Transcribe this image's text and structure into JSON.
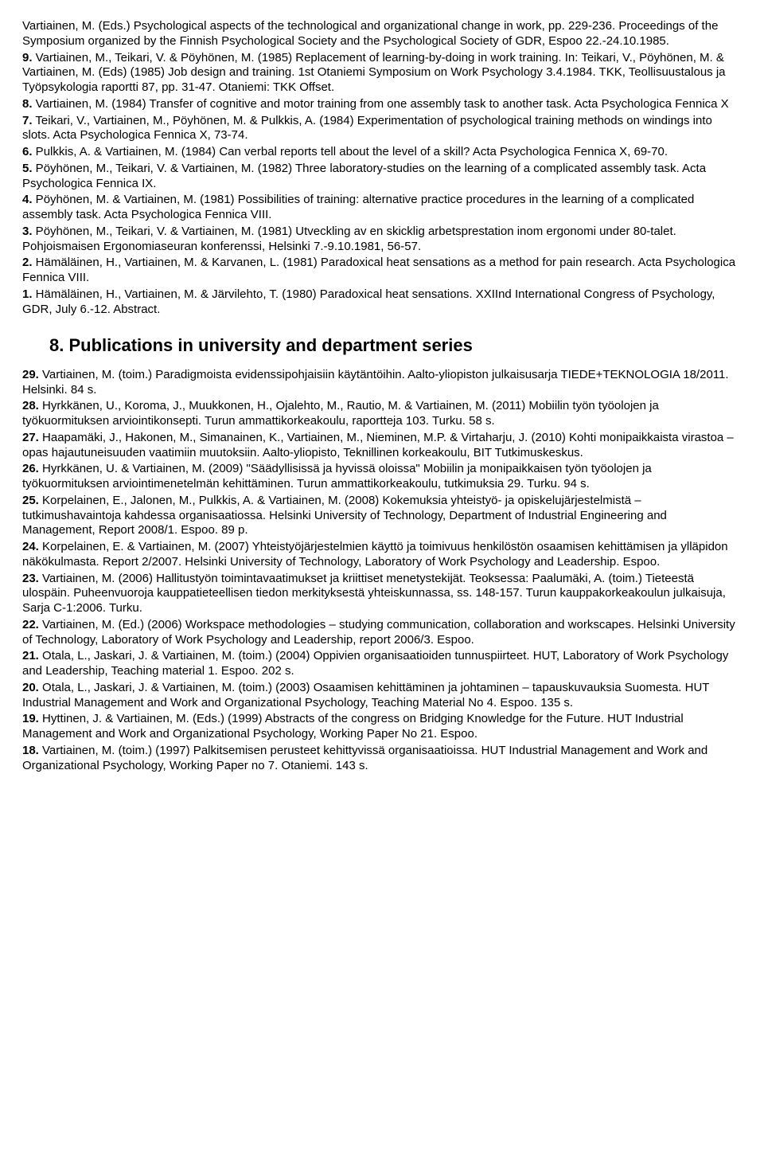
{
  "top_entries": [
    {
      "text": "Vartiainen, M. (Eds.) Psychological aspects of the technological and organizational change in work, pp. 229-236. Proceedings of the Symposium organized by the Finnish Psychological Society and the Psychological Society of GDR, Espoo 22.-24.10.1985."
    },
    {
      "num": "9.",
      "text": " Vartiainen, M., Teikari, V. & Pöyhönen, M. (1985) Replacement of learning-by-doing in work training. In: Teikari, V., Pöyhönen, M. & Vartiainen, M. (Eds) (1985) Job design and training. 1st Otaniemi Symposium on Work Psychology 3.4.1984. TKK, Teollisuustalous ja Työpsykologia raportti 87, pp. 31-47. Otaniemi: TKK Offset."
    },
    {
      "num": "8.",
      "text": " Vartiainen, M. (1984) Transfer of cognitive and motor training from one assembly task to another task. Acta Psychologica Fennica X"
    },
    {
      "num": "7.",
      "text": " Teikari, V., Vartiainen, M., Pöyhönen, M. & Pulkkis, A. (1984) Experimentation of psychological training methods on windings into slots. Acta Psychologica Fennica X, 73-74."
    },
    {
      "num": "6.",
      "text": " Pulkkis, A. & Vartiainen, M. (1984) Can verbal reports tell about the level of a skill? Acta Psychologica Fennica X, 69-70."
    },
    {
      "num": "5.",
      "text": " Pöyhönen, M., Teikari, V. & Vartiainen, M. (1982) Three laboratory-studies on the learning of a complicated assembly task. Acta Psychologica Fennica IX."
    },
    {
      "num": "4.",
      "text": " Pöyhönen, M. & Vartiainen, M. (1981) Possibilities of training: alternative practice procedures in the learning of a complicated assembly task. Acta Psychologica Fennica VIII."
    },
    {
      "num": "3.",
      "text": " Pöyhönen, M., Teikari, V. & Vartiainen, M. (1981) Utveckling av en skicklig arbetsprestation inom ergonomi under 80-talet. Pohjoismaisen Ergonomiaseuran konferenssi, Helsinki 7.-9.10.1981, 56-57."
    },
    {
      "num": "2.",
      "text": " Hämäläinen, H., Vartiainen, M. & Karvanen, L. (1981) Paradoxical heat sensations as a method for pain research. Acta Psychologica Fennica VIII."
    },
    {
      "num": "1.",
      "text": " Hämäläinen, H., Vartiainen, M. & Järvilehto, T. (1980) Paradoxical heat sensations. XXIInd International Congress of Psychology, GDR, July 6.-12. Abstract."
    }
  ],
  "section_heading": "8.  Publications in university and department series",
  "bottom_entries": [
    {
      "num": "29.",
      "text": " Vartiainen, M. (toim.) Paradigmoista evidenssipohjaisiin käytäntöihin. Aalto-yliopiston julkaisusarja TIEDE+TEKNOLOGIA 18/2011. Helsinki. 84 s."
    },
    {
      "num": "28.",
      "text": " Hyrkkänen, U., Koroma, J., Muukkonen, H., Ojalehto, M., Rautio, M. & Vartiainen, M. (2011) Mobiilin työn työolojen ja työkuormituksen arviointikonsepti. Turun ammattikorkeakoulu, raportteja 103. Turku. 58 s."
    },
    {
      "num": "27.",
      "text": " Haapamäki, J., Hakonen, M., Simanainen, K., Vartiainen, M., Nieminen, M.P. & Virtaharju, J. (2010) Kohti monipaikkaista virastoa – opas hajautuneisuuden vaatimiin muutoksiin. Aalto-yliopisto, Teknillinen korkeakoulu, BIT Tutkimuskeskus."
    },
    {
      "num": "26.",
      "text": " Hyrkkänen, U. & Vartiainen, M. (2009) \"Säädyllisissä ja hyvissä oloissa\" Mobiilin ja monipaikkaisen työn työolojen ja työkuormituksen arviointimenetelmän kehittäminen.  Turun ammattikorkeakoulu, tutkimuksia 29. Turku. 94 s."
    },
    {
      "num": "25.",
      "text": " Korpelainen, E., Jalonen, M., Pulkkis, A. & Vartiainen, M. (2008) Kokemuksia yhteistyö- ja opiskelujärjestelmistä – tutkimushavaintoja kahdessa organisaatiossa. Helsinki University of Technology, Department of Industrial Engineering and Management, Report 2008/1. Espoo. 89 p."
    },
    {
      "num": "24.",
      "text": " Korpelainen, E. & Vartiainen, M. (2007) Yhteistyöjärjestelmien käyttö ja toimivuus henkilöstön osaamisen kehittämisen ja ylläpidon näkökulmasta. Report 2/2007. Helsinki University of Technology, Laboratory of Work Psychology and Leadership. Espoo."
    },
    {
      "num": "23.",
      "text": " Vartiainen, M. (2006) Hallitustyön toimintavaatimukset ja kriittiset menetystekijät. Teoksessa: Paalumäki, A. (toim.) Tieteestä ulospäin. Puheenvuoroja kauppatieteellisen tiedon merkityksestä yhteiskunnassa, ss. 148-157. Turun kauppakorkeakoulun julkaisuja, Sarja C-1:2006. Turku."
    },
    {
      "num": "22.",
      "text": " Vartiainen, M. (Ed.) (2006) Workspace methodologies – studying communication, collaboration and workscapes. Helsinki University of Technology, Laboratory of Work Psychology and Leadership, report 2006/3. Espoo."
    },
    {
      "num": "21.",
      "text": " Otala, L., Jaskari, J. & Vartiainen, M. (toim.) (2004) Oppivien organisaatioiden tunnuspiirteet. HUT, Laboratory of Work Psychology and Leadership, Teaching material 1. Espoo. 202 s."
    },
    {
      "num": "20.",
      "text": " Otala, L., Jaskari, J. & Vartiainen, M. (toim.) (2003) Osaamisen kehittäminen ja johtaminen – tapauskuvauksia Suomesta. HUT Industrial Management and Work and Organizational Psychology, Teaching Material No 4. Espoo. 135 s."
    },
    {
      "num": "19.",
      "text": " Hyttinen, J. & Vartiainen, M. (Eds.) (1999) Abstracts of the congress on Bridging Knowledge for the Future. HUT Industrial Management and Work and Organizational Psychology, Working Paper No 21. Espoo."
    },
    {
      "num": "18.",
      "text": " Vartiainen, M. (toim.) (1997) Palkitsemisen perusteet kehittyvissä organisaatioissa. HUT Industrial Management and Work and Organizational Psychology, Working Paper no 7. Otaniemi. 143 s."
    }
  ]
}
